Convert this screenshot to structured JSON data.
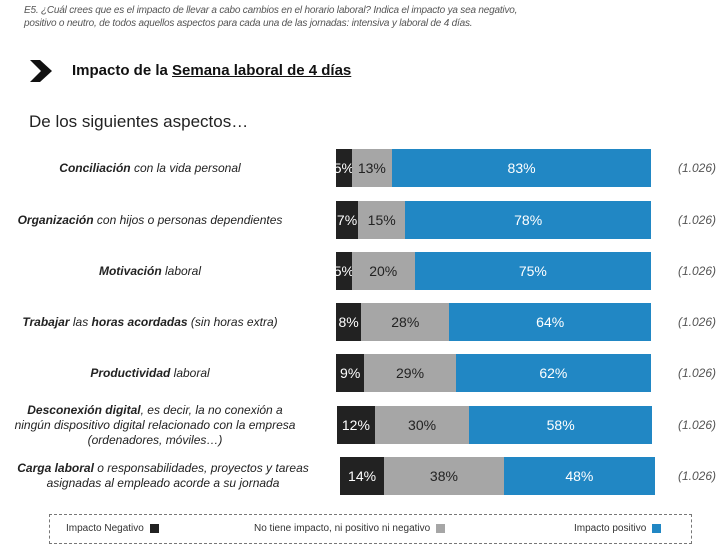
{
  "question": "E5. ¿Cuál crees que es el impacto de llevar a cabo cambios en el horario laboral? Indica el impacto ya sea negativo, positivo o neutro, de todos aquellos aspectos para cada una de las jornadas: intensiva y laboral de 4 días.",
  "title_prefix": "Impacto de la ",
  "title_underlined": "Semana laboral de 4 días",
  "subtitle": "De los siguientes aspectos…",
  "colors": {
    "negativo": "#222222",
    "neutro": "#a6a6a6",
    "positivo": "#2187c4"
  },
  "chart_data": {
    "type": "bar",
    "orientation": "horizontal",
    "stacked": true,
    "categories": [
      {
        "bold": "Conciliación",
        "rest": " con la vida personal"
      },
      {
        "bold": "Organización",
        "rest": " con hijos o personas dependientes"
      },
      {
        "bold": "Motivación",
        "rest": " laboral"
      },
      {
        "bold": "Trabajar",
        "rest": " las horas acordadas (sin  horas extra)",
        "bold2": "horas acordadas"
      },
      {
        "bold": "Productividad",
        "rest": " laboral"
      },
      {
        "bold": "Desconexión digital",
        "rest": ", es decir, la no conexión a ningún dispositivo digital relacionado con la empresa (ordenadores, móviles…)"
      },
      {
        "bold": "Carga laboral",
        "rest": " o responsabilidades, proyectos y tareas asignadas al empleado acorde a su jornada"
      }
    ],
    "series": [
      {
        "name": "Impacto Negativo",
        "values": [
          5,
          7,
          5,
          8,
          9,
          12,
          14
        ]
      },
      {
        "name": "No tiene impacto, ni positivo ni negativo",
        "values": [
          13,
          15,
          20,
          28,
          29,
          30,
          38
        ]
      },
      {
        "name": "Impacto positivo",
        "values": [
          83,
          78,
          75,
          64,
          62,
          58,
          48
        ]
      }
    ],
    "base": [
      "(1.026)",
      "(1.026)",
      "(1.026)",
      "(1.026)",
      "(1.026)",
      "(1.026)",
      "(1.026)"
    ],
    "value_suffix": "%",
    "legend_position": "bottom"
  }
}
